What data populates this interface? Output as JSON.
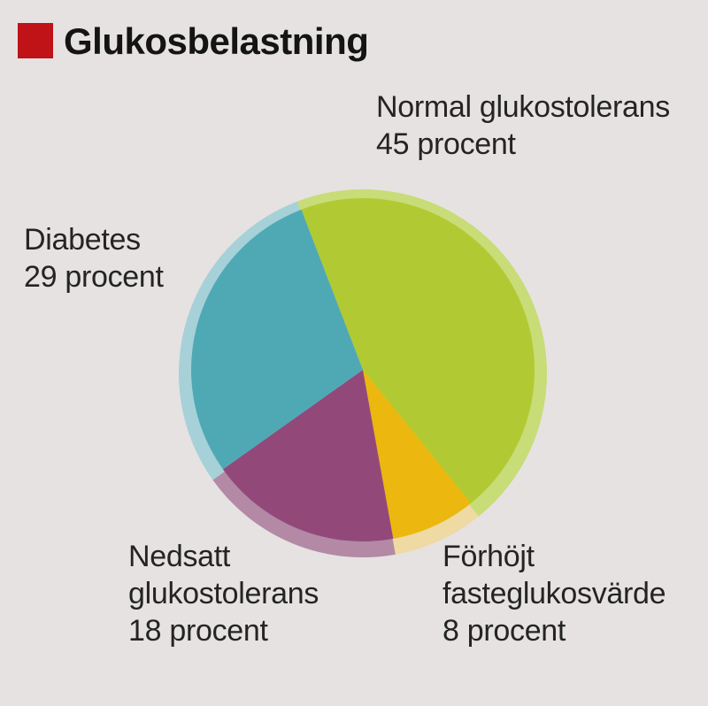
{
  "page": {
    "background_color": "#e6e2e1",
    "text_color": "#242424",
    "title_color": "#141414"
  },
  "header": {
    "title": "Glukosbelastning",
    "accent_color": "#bf1317"
  },
  "chart_data": {
    "type": "pie",
    "title": "Glukosbelastning",
    "unit": "procent",
    "start_angle_deg_cw_from_top": -21,
    "slices": [
      {
        "id": "normal",
        "label": "Normal glukostolerans",
        "value": 45,
        "color": "#b1ca33",
        "rim_color": "#c8dc77"
      },
      {
        "id": "forhojt",
        "label": "Förhöjt fasteglukosvärde",
        "value": 8,
        "color": "#ecb70e",
        "rim_color": "#eedaa2"
      },
      {
        "id": "nedsatt",
        "label": "Nedsatt glukostolerans",
        "value": 18,
        "color": "#92497a",
        "rim_color": "#b389a5"
      },
      {
        "id": "diabetes",
        "label": "Diabetes",
        "value": 29,
        "color": "#4fa9b5",
        "rim_color": "#a6d1d8"
      }
    ],
    "labels": {
      "normal": {
        "lines": [
          "Normal glukostolerans",
          "45 procent"
        ]
      },
      "diabetes": {
        "lines": [
          "Diabetes",
          "29 procent"
        ]
      },
      "nedsatt": {
        "lines": [
          "Nedsatt",
          "glukostolerans",
          "18 procent"
        ]
      },
      "forhojt": {
        "lines": [
          "Förhöjt",
          "fasteglukosvärde",
          "8 procent"
        ]
      }
    }
  }
}
